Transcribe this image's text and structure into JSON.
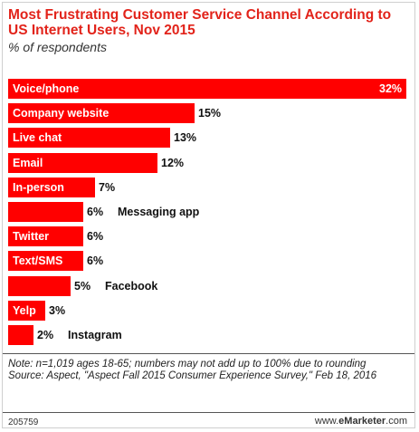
{
  "chart_data": {
    "type": "bar",
    "orientation": "horizontal",
    "title": "Most Frustrating Customer Service Channel According to US Internet Users, Nov 2015",
    "subtitle": "% of respondents",
    "categories": [
      "Voice/phone",
      "Company website",
      "Live chat",
      "Email",
      "In-person",
      "Messaging app",
      "Twitter",
      "Text/SMS",
      "Facebook",
      "Yelp",
      "Instagram"
    ],
    "values": [
      32,
      15,
      13,
      12,
      7,
      6,
      6,
      6,
      5,
      3,
      2
    ],
    "value_labels": [
      "32%",
      "15%",
      "13%",
      "12%",
      "7%",
      "6%",
      "6%",
      "6%",
      "5%",
      "3%",
      "2%"
    ],
    "label_position": [
      "inside",
      "inside",
      "inside",
      "inside",
      "inside",
      "outside",
      "inside",
      "inside",
      "outside",
      "inside",
      "outside"
    ],
    "xlim": [
      0,
      32
    ],
    "color": "#ff0000"
  },
  "footer": {
    "note": "Note: n=1,019 ages 18-65; numbers may not add up to 100% due to rounding",
    "source": "Source: Aspect, \"Aspect Fall 2015 Consumer Experience Survey,\" Feb 18, 2016",
    "chart_id": "205759",
    "brand_prefix": "www.",
    "brand_name": "eMarketer",
    "brand_suffix": ".com"
  }
}
